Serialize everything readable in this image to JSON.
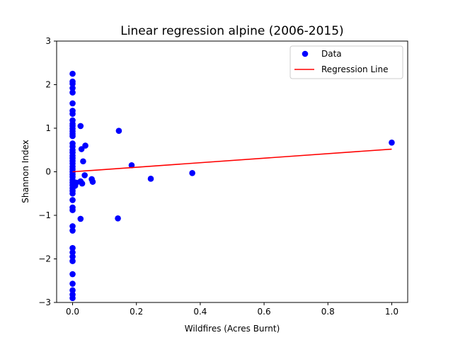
{
  "chart_data": {
    "type": "scatter",
    "title": "Linear regression alpine (2006-2015)",
    "xlabel": "Wildfires (Acres Burnt)",
    "ylabel": "Shannon Index",
    "xlim": [
      -0.05,
      1.05
    ],
    "ylim": [
      -3,
      3
    ],
    "x_ticks": [
      0.0,
      0.2,
      0.4,
      0.6,
      0.8,
      1.0
    ],
    "x_tick_labels": [
      "0.0",
      "0.2",
      "0.4",
      "0.6",
      "0.8",
      "1.0"
    ],
    "y_ticks": [
      -3,
      -2,
      -1,
      0,
      1,
      2,
      3
    ],
    "y_tick_labels": [
      "−3",
      "−2",
      "−1",
      "0",
      "1",
      "2",
      "3"
    ],
    "grid": false,
    "legend_position": "top-right",
    "series": [
      {
        "name": "Data",
        "kind": "scatter",
        "color": "#0000ff",
        "points": [
          [
            0,
            2.25
          ],
          [
            0,
            2.07
          ],
          [
            0,
            2.02
          ],
          [
            0,
            1.92
          ],
          [
            0,
            1.82
          ],
          [
            0,
            1.57
          ],
          [
            0,
            1.4
          ],
          [
            0,
            1.33
          ],
          [
            0,
            1.18
          ],
          [
            0,
            1.1
          ],
          [
            0,
            1.05
          ],
          [
            0,
            0.99
          ],
          [
            0,
            0.93
          ],
          [
            0,
            0.87
          ],
          [
            0,
            0.82
          ],
          [
            0,
            0.65
          ],
          [
            0,
            0.58
          ],
          [
            0,
            0.5
          ],
          [
            0,
            0.44
          ],
          [
            0,
            0.37
          ],
          [
            0,
            0.31
          ],
          [
            0,
            0.25
          ],
          [
            0,
            0.19
          ],
          [
            0,
            0.12
          ],
          [
            0,
            0.06
          ],
          [
            0,
            0.0
          ],
          [
            0,
            -0.06
          ],
          [
            0,
            -0.12
          ],
          [
            0,
            -0.19
          ],
          [
            0,
            -0.25
          ],
          [
            0,
            -0.31
          ],
          [
            0,
            -0.38
          ],
          [
            0,
            -0.44
          ],
          [
            0,
            -0.5
          ],
          [
            0,
            -0.65
          ],
          [
            0,
            -0.82
          ],
          [
            0,
            -0.88
          ],
          [
            0,
            -1.25
          ],
          [
            0,
            -1.35
          ],
          [
            0,
            -1.75
          ],
          [
            0,
            -1.85
          ],
          [
            0,
            -1.95
          ],
          [
            0,
            -2.05
          ],
          [
            0,
            -2.35
          ],
          [
            0,
            -2.57
          ],
          [
            0,
            -2.72
          ],
          [
            0,
            -2.82
          ],
          [
            0,
            -2.9
          ],
          [
            0.008,
            -0.32
          ],
          [
            0.012,
            -0.25
          ],
          [
            0.025,
            1.05
          ],
          [
            0.028,
            0.52
          ],
          [
            0.033,
            0.24
          ],
          [
            0.04,
            0.6
          ],
          [
            0.025,
            -0.22
          ],
          [
            0.03,
            -0.27
          ],
          [
            0.038,
            -0.08
          ],
          [
            0.06,
            -0.17
          ],
          [
            0.063,
            -0.23
          ],
          [
            0.025,
            -1.08
          ],
          [
            0.145,
            0.94
          ],
          [
            0.142,
            -1.07
          ],
          [
            0.185,
            0.15
          ],
          [
            0.245,
            -0.16
          ],
          [
            0.375,
            -0.03
          ],
          [
            1.0,
            0.67
          ]
        ]
      },
      {
        "name": "Regression Line",
        "kind": "line",
        "color": "#ff0000",
        "x": [
          0,
          1.0
        ],
        "y": [
          0.0,
          0.52
        ]
      }
    ]
  }
}
